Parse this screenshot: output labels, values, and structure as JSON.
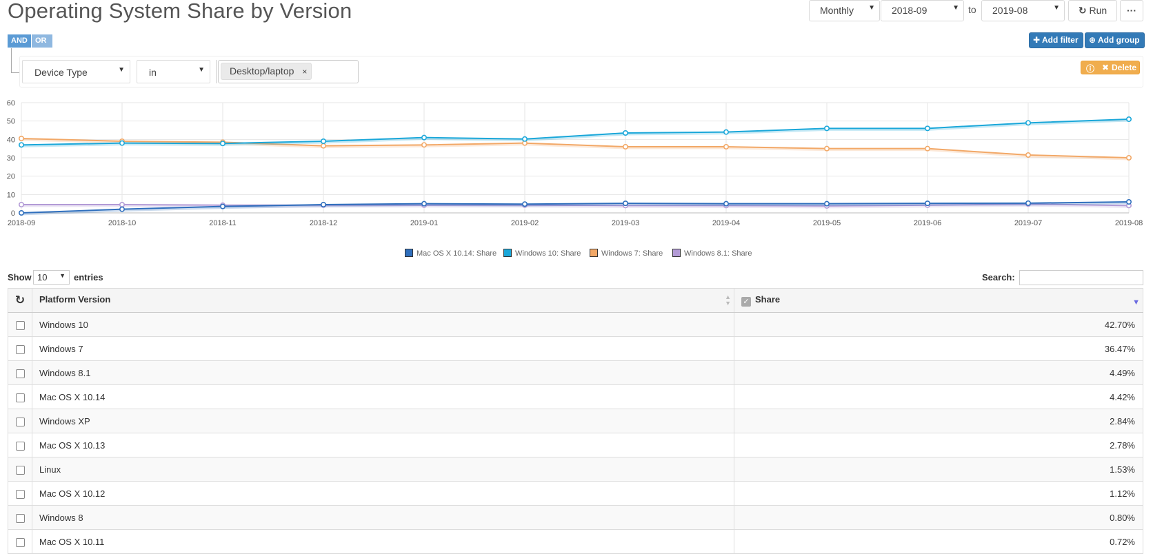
{
  "title": "Operating System Share by Version",
  "controls": {
    "interval": "Monthly",
    "from": "2018-09",
    "to_label": "to",
    "to": "2019-08",
    "run_label": "Run",
    "more_label": "···"
  },
  "logic": {
    "and_label": "AND",
    "or_label": "OR"
  },
  "actions": {
    "add_filter": "Add filter",
    "add_group": "Add group",
    "delete": "Delete"
  },
  "filter": {
    "field": "Device Type",
    "operator": "in",
    "value_tag": "Desktop/laptop",
    "tag_remove": "×"
  },
  "chart_data": {
    "type": "line",
    "x": [
      "2018-09",
      "2018-10",
      "2018-11",
      "2018-12",
      "2019-01",
      "2019-02",
      "2019-03",
      "2019-04",
      "2019-05",
      "2019-06",
      "2019-07",
      "2019-08"
    ],
    "ylim": [
      0,
      60
    ],
    "yticks": [
      0,
      10,
      20,
      30,
      40,
      50,
      60
    ],
    "grid": true,
    "legend_position": "bottom",
    "series": [
      {
        "name": "Mac OS X 10.14: Share",
        "color": "#2f6fbd",
        "values": [
          0,
          2,
          3.5,
          4.5,
          5,
          4.8,
          5.2,
          5,
          5,
          5.2,
          5.3,
          6
        ]
      },
      {
        "name": "Windows 10: Share",
        "color": "#1aa7d9",
        "values": [
          37,
          38,
          37.8,
          39,
          41,
          40.2,
          43.5,
          44,
          46,
          46,
          49,
          51
        ]
      },
      {
        "name": "Windows 7: Share",
        "color": "#f2a867",
        "values": [
          40.5,
          39,
          38.5,
          36.5,
          37,
          38,
          36,
          36,
          35,
          35,
          31.5,
          30
        ]
      },
      {
        "name": "Windows 8.1: Share",
        "color": "#b39bd6",
        "values": [
          4.5,
          4.5,
          4.2,
          4.2,
          4.2,
          4.2,
          4,
          4,
          3.8,
          4.2,
          4.8,
          4
        ]
      }
    ]
  },
  "table": {
    "show_label": "Show",
    "entries_value": "10",
    "entries_label": "entries",
    "search_label": "Search:",
    "search_value": "",
    "refresh_icon": "↻",
    "columns": [
      "Platform Version",
      "Share"
    ],
    "header_check": "✓",
    "rows": [
      {
        "version": "Windows 10",
        "share": "42.70%"
      },
      {
        "version": "Windows 7",
        "share": "36.47%"
      },
      {
        "version": "Windows 8.1",
        "share": "4.49%"
      },
      {
        "version": "Mac OS X 10.14",
        "share": "4.42%"
      },
      {
        "version": "Windows XP",
        "share": "2.84%"
      },
      {
        "version": "Mac OS X 10.13",
        "share": "2.78%"
      },
      {
        "version": "Linux",
        "share": "1.53%"
      },
      {
        "version": "Mac OS X 10.12",
        "share": "1.12%"
      },
      {
        "version": "Windows 8",
        "share": "0.80%"
      },
      {
        "version": "Mac OS X 10.11",
        "share": "0.72%"
      }
    ]
  }
}
